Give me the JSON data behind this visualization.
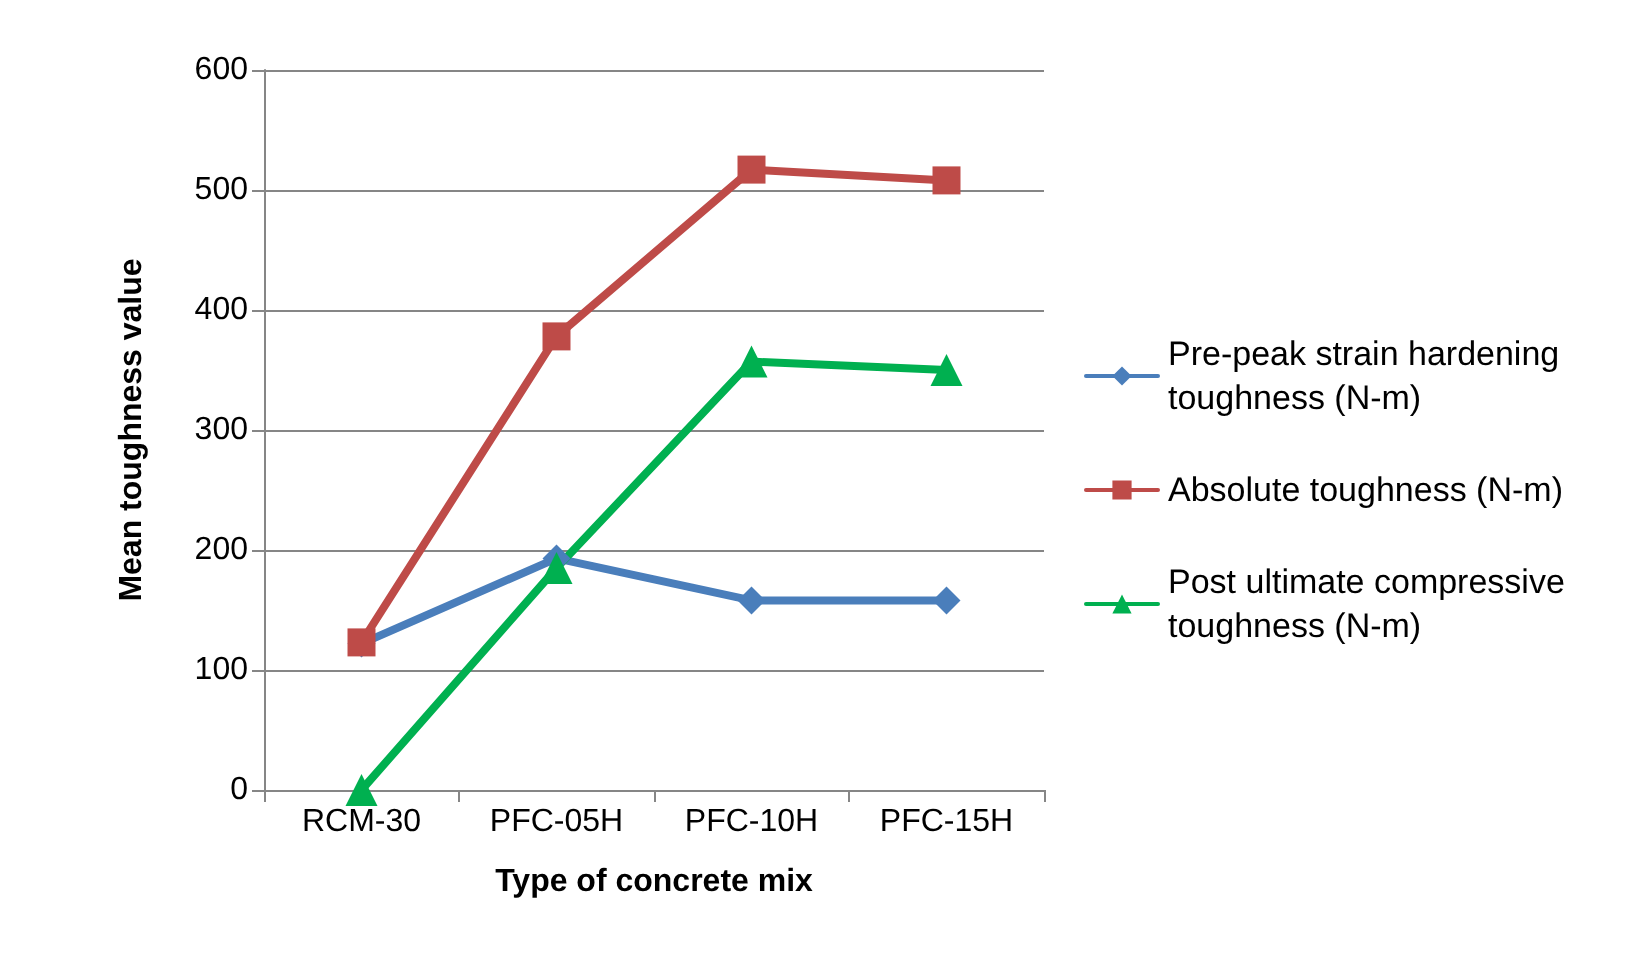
{
  "chart_data": {
    "type": "line",
    "xlabel": "Type of concrete mix",
    "ylabel": "Mean toughness value",
    "categories": [
      "RCM-30",
      "PFC-05H",
      "PFC-10H",
      "PFC-15H"
    ],
    "series": [
      {
        "name": "Pre-peak strain hardening toughness (N-m)",
        "color": "#4a7ebb",
        "marker": "diamond",
        "values": [
          122,
          193,
          158,
          158
        ]
      },
      {
        "name": "Absolute toughness (N-m)",
        "color": "#be4b48",
        "marker": "square",
        "values": [
          123,
          378,
          517,
          508
        ]
      },
      {
        "name": "Post ultimate compressive toughness (N-m)",
        "color": "#00b050",
        "marker": "triangle",
        "values": [
          0,
          185,
          357,
          350
        ]
      }
    ],
    "ylim": [
      0,
      600
    ],
    "yticks": [
      0,
      100,
      200,
      300,
      400,
      500,
      600
    ],
    "grid": "y",
    "legend": "right",
    "line_style": "solid"
  }
}
